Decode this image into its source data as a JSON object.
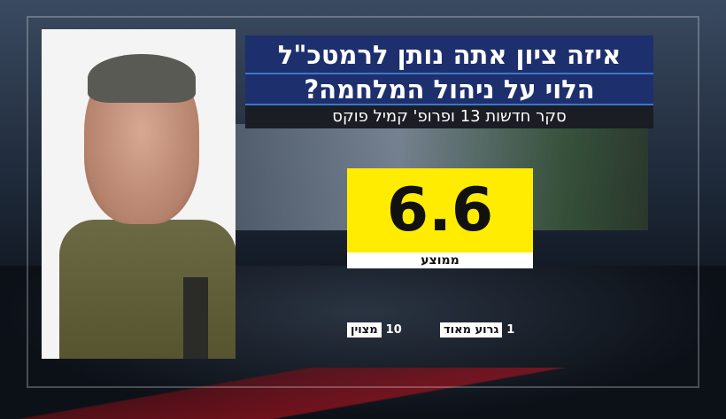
{
  "poll": {
    "question_line1": "איזה ציון אתה נותן לרמטכ\"ל",
    "question_line2": "הלוי על ניהול המלחמה?",
    "source": "סקר חדשות 13 ופרופ' קמיל פוקס",
    "average_value": "6.6",
    "average_label": "ממוצע",
    "scale_min_value": "1",
    "scale_min_label": "גרוע מאוד",
    "scale_max_value": "10",
    "scale_max_label": "מצוין"
  },
  "colors": {
    "title_bar": "#1e2f6e",
    "score_box": "#ffec00",
    "subtitle_bar": "#1a1d24"
  }
}
